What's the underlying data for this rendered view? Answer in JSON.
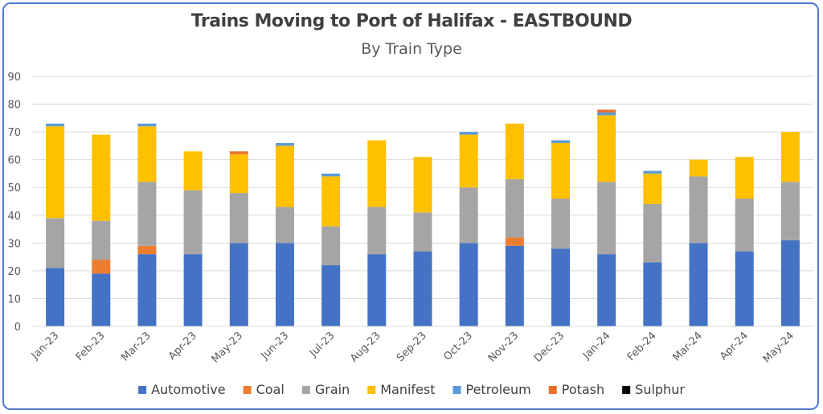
{
  "chart_data": {
    "type": "bar",
    "stacked": true,
    "title": "Trains Moving to Port of Halifax - EASTBOUND",
    "subtitle": "By Train Type",
    "xlabel": "",
    "ylabel": "",
    "ylim": [
      0,
      90
    ],
    "yticks": [
      0,
      10,
      20,
      30,
      40,
      50,
      60,
      70,
      80,
      90
    ],
    "grid": true,
    "legend_position": "bottom",
    "categories": [
      "Jan-23",
      "Feb-23",
      "Mar-23",
      "Apr-23",
      "May-23",
      "Jun-23",
      "Jul-23",
      "Aug-23",
      "Sep-23",
      "Oct-23",
      "Nov-23",
      "Dec-23",
      "Jan-24",
      "Feb-24",
      "Mar-24",
      "Apr-24",
      "May-24"
    ],
    "series": [
      {
        "name": "Automotive",
        "color": "#4472c4",
        "values": [
          21,
          19,
          26,
          26,
          30,
          30,
          22,
          26,
          27,
          30,
          29,
          28,
          26,
          23,
          30,
          27,
          31
        ]
      },
      {
        "name": "Coal",
        "color": "#ed7d31",
        "values": [
          0,
          5,
          3,
          0,
          0,
          0,
          0,
          0,
          0,
          0,
          3,
          0,
          0,
          0,
          0,
          0,
          0
        ]
      },
      {
        "name": "Grain",
        "color": "#a5a5a5",
        "values": [
          18,
          14,
          23,
          23,
          18,
          13,
          14,
          17,
          14,
          20,
          21,
          18,
          26,
          21,
          24,
          19,
          21
        ]
      },
      {
        "name": "Manifest",
        "color": "#ffc000",
        "values": [
          33,
          31,
          20,
          14,
          14,
          22,
          18,
          24,
          20,
          19,
          20,
          20,
          24,
          11,
          6,
          15,
          18
        ]
      },
      {
        "name": "Petroleum",
        "color": "#5b9bd5",
        "values": [
          1,
          0,
          1,
          0,
          0,
          1,
          1,
          0,
          0,
          1,
          0,
          1,
          1,
          1,
          0,
          0,
          0
        ]
      },
      {
        "name": "Potash",
        "color": "#e8702a",
        "values": [
          0,
          0,
          0,
          0,
          1,
          0,
          0,
          0,
          0,
          0,
          0,
          0,
          1,
          0,
          0,
          0,
          0
        ]
      },
      {
        "name": "Sulphur",
        "color": "#000000",
        "values": [
          0,
          0,
          0,
          0,
          0,
          0,
          0,
          0,
          0,
          0,
          0,
          0,
          0,
          0,
          0,
          0,
          0
        ]
      }
    ]
  }
}
